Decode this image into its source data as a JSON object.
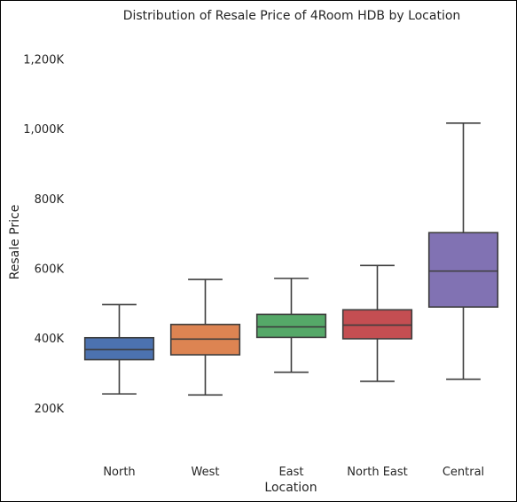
{
  "chart_data": {
    "type": "box",
    "title": "Distribution of Resale Price of 4Room HDB by Location",
    "xlabel": "Location",
    "ylabel": "Resale Price",
    "ylim": [
      70000,
      1290000
    ],
    "yticks": [
      200000,
      400000,
      600000,
      800000,
      1000000,
      1200000
    ],
    "ytick_labels": [
      "200K",
      "400K",
      "600K",
      "800K",
      "1,000K",
      "1,200K"
    ],
    "grid": false,
    "categories": [
      "North",
      "West",
      "East",
      "North East",
      "Central"
    ],
    "boxes": [
      {
        "category": "North",
        "whisker_low": 240000,
        "q1": 338000,
        "median": 367000,
        "q3": 401000,
        "whisker_high": 496000,
        "color": "#4c72b0"
      },
      {
        "category": "West",
        "whisker_low": 237000,
        "q1": 352000,
        "median": 397000,
        "q3": 439000,
        "whisker_high": 568000,
        "color": "#dd8452"
      },
      {
        "category": "East",
        "whisker_low": 302000,
        "q1": 402000,
        "median": 432000,
        "q3": 468000,
        "whisker_high": 571000,
        "color": "#55a868"
      },
      {
        "category": "North East",
        "whisker_low": 276000,
        "q1": 398000,
        "median": 437000,
        "q3": 481000,
        "whisker_high": 608000,
        "color": "#c44e52"
      },
      {
        "category": "Central",
        "whisker_low": 282000,
        "q1": 489000,
        "median": 592000,
        "q3": 702000,
        "whisker_high": 1016000,
        "color": "#8172b3"
      }
    ]
  }
}
